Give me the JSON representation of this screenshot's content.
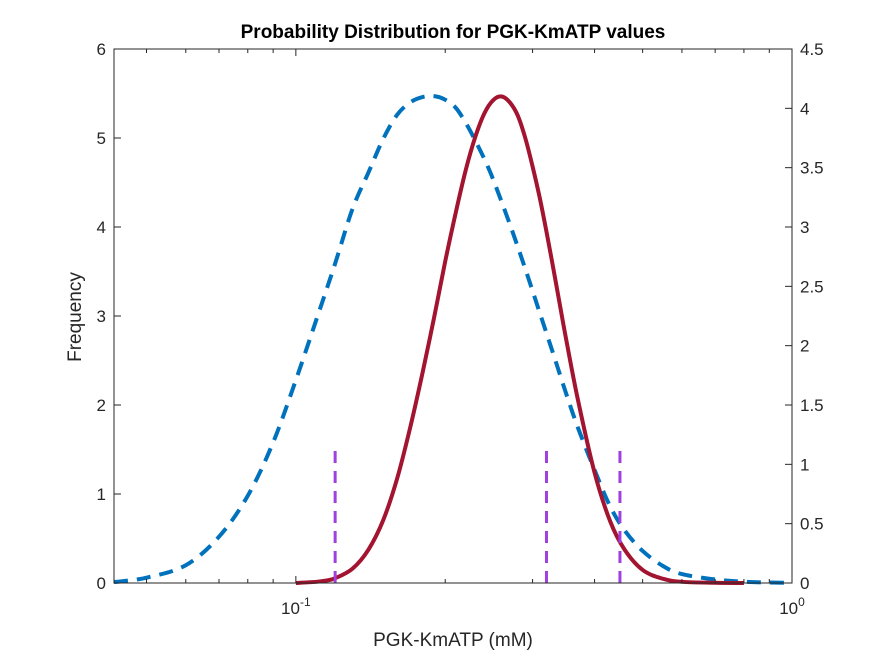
{
  "chart_data": {
    "type": "line",
    "title": "Probability Distribution for PGK-KmATP values",
    "xlabel": "PGK-KmATP (mM)",
    "ylabel": "Frequency",
    "x_scale": "log",
    "xlim": [
      0.043,
      1.0
    ],
    "ylim_left": [
      0,
      6
    ],
    "ylim_right": [
      0,
      4.5
    ],
    "x_ticks": [
      {
        "value": 0.1,
        "base": "10",
        "exp": "-1"
      },
      {
        "value": 1.0,
        "base": "10",
        "exp": "0"
      }
    ],
    "y_ticks_left": [
      "0",
      "1",
      "2",
      "3",
      "4",
      "5",
      "6"
    ],
    "y_ticks_right": [
      "0",
      "0.5",
      "1",
      "1.5",
      "2",
      "2.5",
      "3",
      "3.5",
      "4",
      "4.5"
    ],
    "grid": false,
    "series": [
      {
        "axis": "left",
        "style": "dashed",
        "color": "#0072BD",
        "x": [
          0.043,
          0.05,
          0.06,
          0.07,
          0.08,
          0.09,
          0.1,
          0.11,
          0.12,
          0.13,
          0.14,
          0.15,
          0.16,
          0.17,
          0.18,
          0.19,
          0.2,
          0.21,
          0.22,
          0.23,
          0.24,
          0.25,
          0.27,
          0.29,
          0.31,
          0.33,
          0.35,
          0.37,
          0.4,
          0.43,
          0.46,
          0.5,
          0.55,
          0.6,
          0.7,
          0.8,
          0.9,
          1.0
        ],
        "y": [
          0.01,
          0.06,
          0.2,
          0.52,
          0.98,
          1.58,
          2.28,
          2.96,
          3.59,
          4.2,
          4.61,
          4.99,
          5.26,
          5.4,
          5.46,
          5.47,
          5.43,
          5.34,
          5.17,
          4.97,
          4.76,
          4.53,
          4.03,
          3.53,
          3.04,
          2.58,
          2.14,
          1.75,
          1.27,
          0.86,
          0.59,
          0.36,
          0.19,
          0.1,
          0.04,
          0.015,
          0.005,
          0.002
        ]
      },
      {
        "axis": "right",
        "style": "solid",
        "color": "#A2142F",
        "x": [
          0.1,
          0.11,
          0.115,
          0.12,
          0.13,
          0.14,
          0.15,
          0.16,
          0.17,
          0.18,
          0.19,
          0.2,
          0.21,
          0.22,
          0.23,
          0.24,
          0.25,
          0.26,
          0.27,
          0.28,
          0.29,
          0.3,
          0.31,
          0.32,
          0.33,
          0.34,
          0.35,
          0.37,
          0.4,
          0.43,
          0.46,
          0.5,
          0.55,
          0.6,
          0.7,
          0.8
        ],
        "y": [
          0.0,
          0.01,
          0.02,
          0.04,
          0.12,
          0.28,
          0.53,
          0.88,
          1.31,
          1.77,
          2.24,
          2.71,
          3.12,
          3.48,
          3.76,
          3.96,
          4.07,
          4.1,
          4.05,
          3.94,
          3.75,
          3.51,
          3.25,
          2.96,
          2.66,
          2.36,
          2.07,
          1.55,
          0.93,
          0.52,
          0.28,
          0.11,
          0.035,
          0.01,
          0.002,
          0.0
        ]
      }
    ],
    "vertical_markers": {
      "style": "dashed",
      "color": "#A040E0",
      "x": [
        0.12,
        0.32,
        0.45
      ],
      "y_top_left": 1.5
    }
  }
}
